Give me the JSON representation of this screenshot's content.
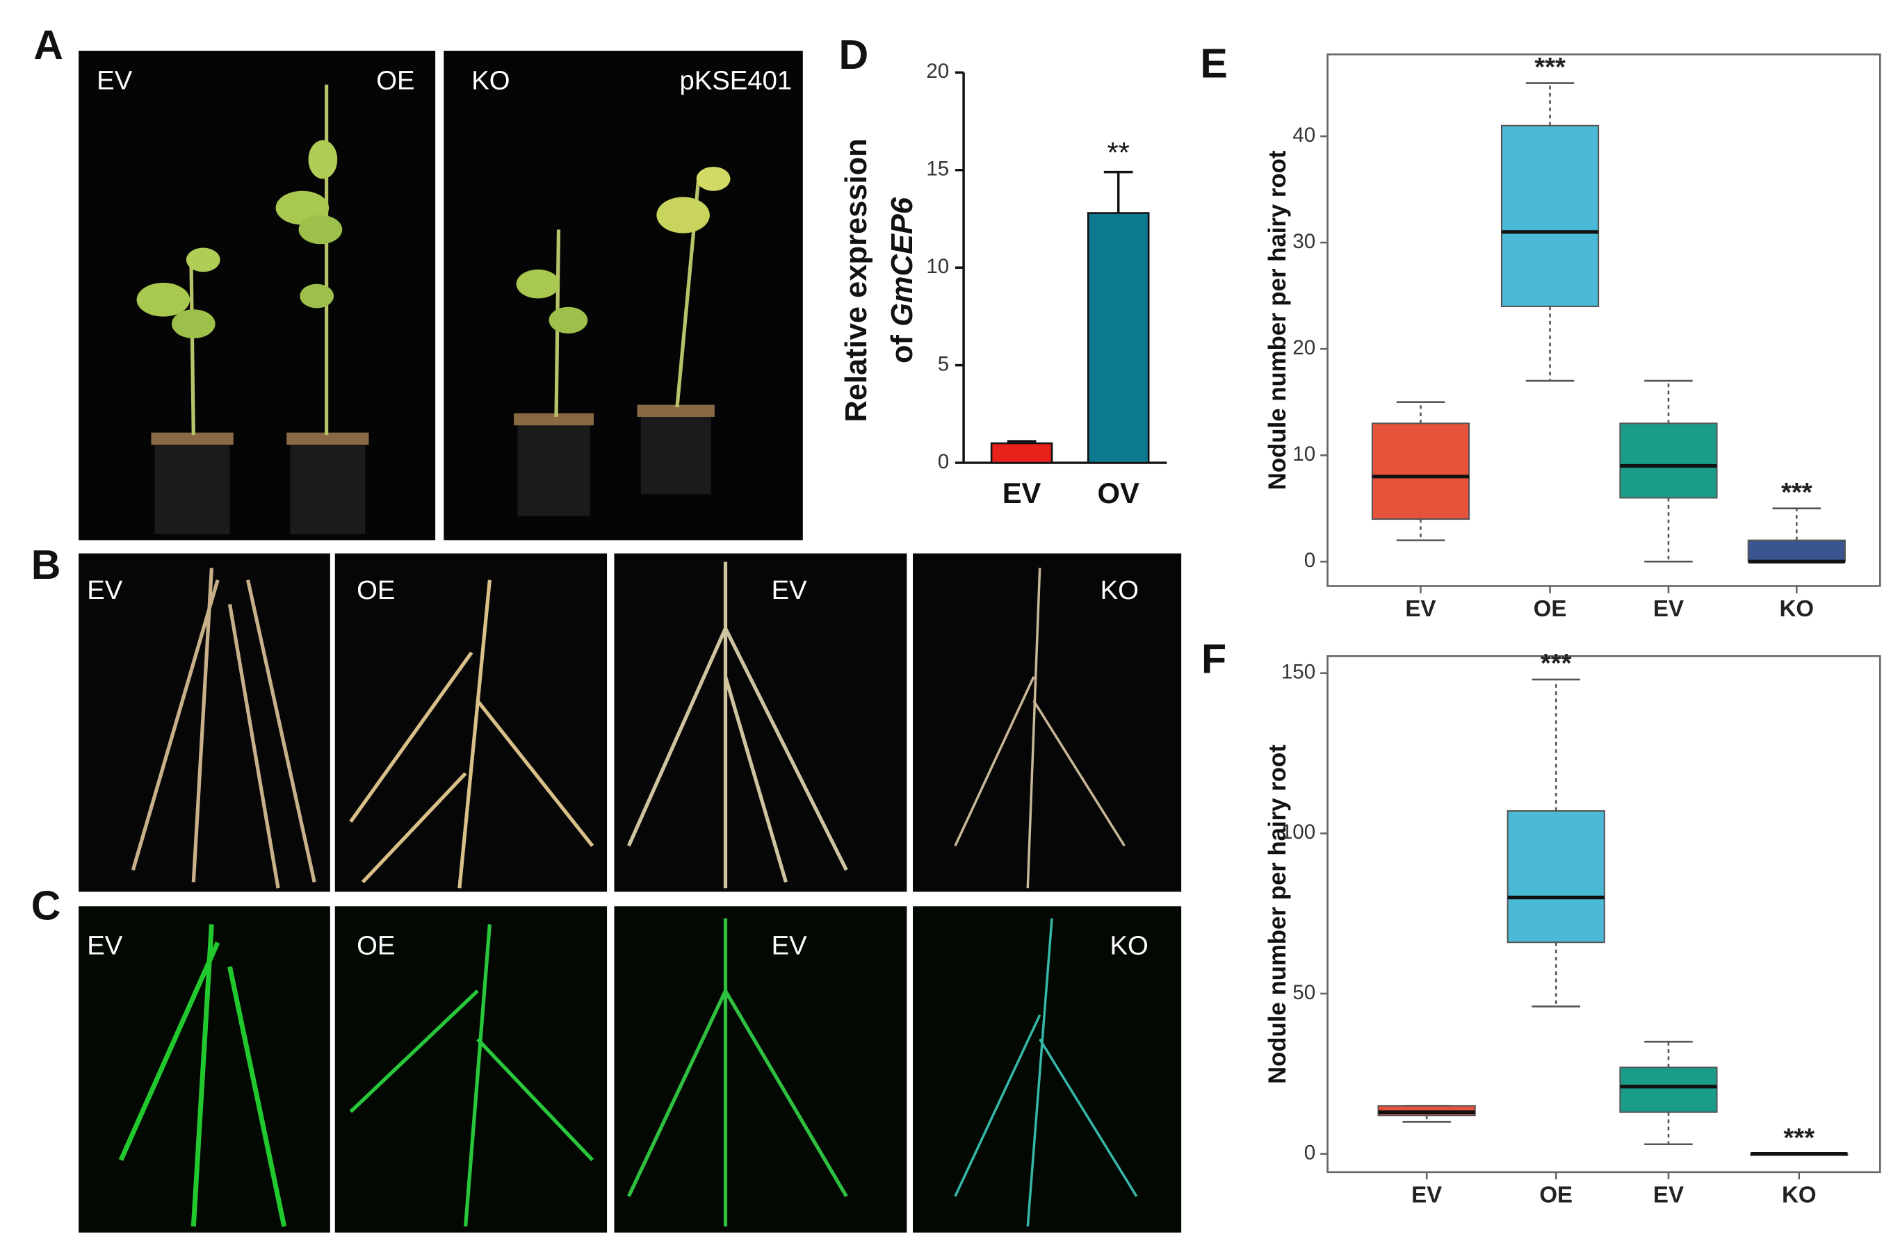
{
  "panel_labels": [
    "A",
    "B",
    "C",
    "D",
    "E",
    "F"
  ],
  "photos": {
    "A": [
      "EV",
      "OE",
      "KO",
      "pKSE401"
    ],
    "B": [
      "EV",
      "OE",
      "EV",
      "KO"
    ],
    "C": [
      "EV",
      "OE",
      "EV",
      "KO"
    ]
  },
  "chart_data": [
    {
      "type": "bar",
      "ylabel": {
        "line1": "Relative expression",
        "prefix": "of",
        "gene": "GmCEP6"
      },
      "categories": [
        "EV",
        "OV"
      ],
      "values": [
        1.0,
        12.8
      ],
      "errors": [
        0.1,
        2.1
      ],
      "colors": [
        "#e8221b",
        "#0e7a90"
      ],
      "ylim": [
        0,
        20
      ],
      "yticks": [
        0,
        5,
        10,
        15,
        20
      ],
      "significance": [
        null,
        "**"
      ]
    },
    {
      "type": "box",
      "ylabel": "Nodule number per hairy root",
      "categories": [
        "EV",
        "OE",
        "EV",
        "KO"
      ],
      "boxes": [
        {
          "min": 2,
          "q1": 4,
          "median": 8,
          "q3": 13,
          "max": 15,
          "color": "#e6533a"
        },
        {
          "min": 17,
          "q1": 24,
          "median": 31,
          "q3": 41,
          "max": 45,
          "color": "#4bbad6"
        },
        {
          "min": 0,
          "q1": 6,
          "median": 9,
          "q3": 13,
          "max": 17,
          "color": "#1a9c8a"
        },
        {
          "min": 0,
          "q1": 0,
          "median": 0,
          "q3": 2,
          "max": 5,
          "color": "#3a5590"
        }
      ],
      "ylim": [
        -2.3,
        47.7
      ],
      "yticks": [
        0,
        10,
        20,
        30,
        40
      ],
      "significance": [
        null,
        "***",
        null,
        "***"
      ]
    },
    {
      "type": "box",
      "ylabel": "Nodule number per hairy root",
      "categories": [
        "EV",
        "OE",
        "EV",
        "KO"
      ],
      "boxes": [
        {
          "min": 10,
          "q1": 12,
          "median": 13,
          "q3": 15,
          "max": 15,
          "color": "#e6533a"
        },
        {
          "min": 46,
          "q1": 66,
          "median": 80,
          "q3": 107,
          "max": 148,
          "color": "#4bbad6"
        },
        {
          "min": 3,
          "q1": 13,
          "median": 21,
          "q3": 27,
          "max": 35,
          "color": "#1a9c8a"
        },
        {
          "min": 0,
          "q1": 0,
          "median": 0,
          "q3": 0,
          "max": 0,
          "color": "#3a5590"
        }
      ],
      "ylim": [
        -5.7,
        155.3
      ],
      "yticks": [
        0,
        50,
        100,
        150
      ],
      "significance": [
        null,
        "***",
        null,
        "***"
      ]
    }
  ]
}
